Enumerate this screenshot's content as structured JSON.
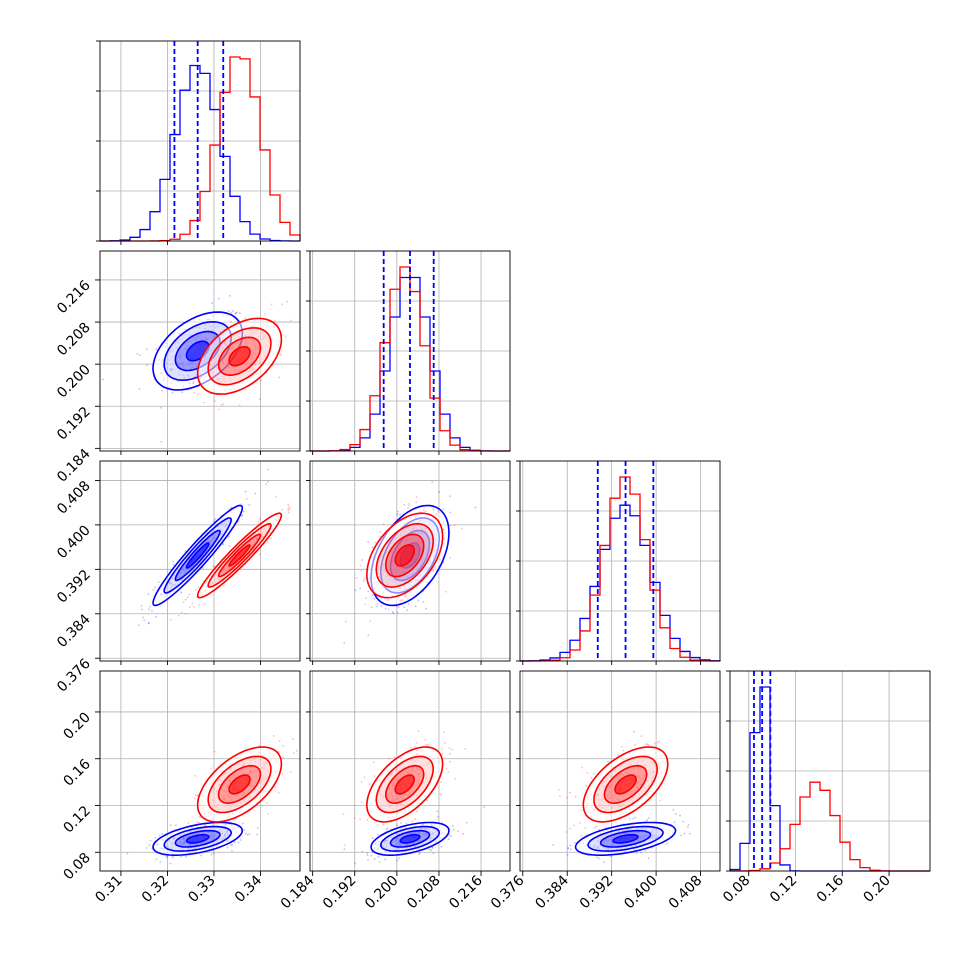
{
  "chart_data": {
    "type": "scatter",
    "kind": "corner-plot",
    "grid": true,
    "colors": {
      "blue": "#0000ff",
      "red": "#ff0000"
    },
    "params": [
      {
        "ticks": [
          "0.31",
          "0.32",
          "0.33",
          "0.34"
        ],
        "tick_values": [
          0.31,
          0.32,
          0.33,
          0.34
        ],
        "range": [
          0.3055,
          0.3485
        ]
      },
      {
        "ticks": [
          "0.184",
          "0.192",
          "0.200",
          "0.208",
          "0.216"
        ],
        "tick_values": [
          0.184,
          0.192,
          0.2,
          0.208,
          0.216
        ],
        "range": [
          0.1835,
          0.2215
        ]
      },
      {
        "ticks": [
          "0.376",
          "0.384",
          "0.392",
          "0.400",
          "0.408"
        ],
        "tick_values": [
          0.376,
          0.384,
          0.392,
          0.4,
          0.408
        ],
        "range": [
          0.3755,
          0.4115
        ]
      },
      {
        "ticks": [
          "0.08",
          "0.12",
          "0.16",
          "0.20"
        ],
        "tick_values": [
          0.08,
          0.12,
          0.16,
          0.2
        ],
        "range": [
          0.064,
          0.235
        ]
      }
    ],
    "series": [
      {
        "color": "blue",
        "means": [
          0.3265,
          0.2025,
          0.3945,
          0.0915
        ],
        "sds": [
          0.0048,
          0.0037,
          0.0045,
          0.007
        ],
        "corr": {
          "1-0": 0.45,
          "2-0": 0.95,
          "2-1": 0.45,
          "3-0": 0.5,
          "3-1": 0.5,
          "3-2": 0.5
        },
        "quantile_lines": [
          [
            0.3215,
            0.3265,
            0.332
          ],
          [
            0.1975,
            0.2025,
            0.207
          ],
          [
            0.3895,
            0.3945,
            0.3995
          ],
          [
            0.0845,
            0.0915,
            0.0985
          ]
        ]
      },
      {
        "color": "red",
        "means": [
          0.3355,
          0.2015,
          0.3945,
          0.138
        ],
        "sds": [
          0.0045,
          0.0036,
          0.0038,
          0.016
        ],
        "corr": {
          "1-0": 0.45,
          "2-0": 0.95,
          "2-1": 0.45,
          "3-0": 0.55,
          "3-1": 0.55,
          "3-2": 0.55
        }
      }
    ]
  }
}
